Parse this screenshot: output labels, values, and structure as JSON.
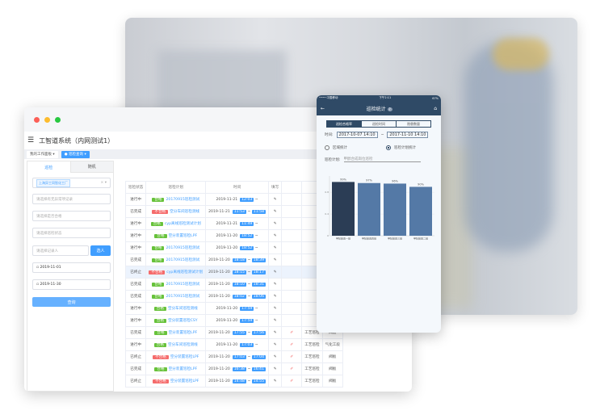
{
  "desktop": {
    "app_title": "工智道系统（内网测试1）",
    "tabs": [
      {
        "label": "我的工作面板"
      },
      {
        "label": "巡检查询"
      }
    ],
    "left_tabs": [
      "巡检",
      "随机"
    ],
    "filters": {
      "plant": "上海异工同智化工厂",
      "abnormal_placeholder": "请选择有无异常项记录",
      "qualified_placeholder": "请选择是否合格",
      "status_placeholder": "请选择巡检状态",
      "recorder_placeholder": "请选择记录人",
      "select_btn": "选人",
      "date_from": "2019-11-01",
      "date_to": "2019-11-30",
      "query_btn": "查询"
    },
    "table": {
      "headers": [
        "巡检状态",
        "巡检计划",
        "时间",
        "填写"
      ],
      "rows": [
        [
          "进行中",
          "合格",
          "20170915巡检测试",
          "2019-11-21",
          "12:03",
          ""
        ],
        [
          "已完成",
          "不合格",
          "空分车间巡检测线",
          "2019-11-21",
          "11:53",
          "11:58"
        ],
        [
          "进行中",
          "合格",
          "cyp离线巡检测试计划",
          "2019-11-21",
          "11:49",
          ""
        ],
        [
          "进行中",
          "合格",
          "空分装置巡检LPF",
          "2019-11-20",
          "18:52",
          ""
        ],
        [
          "进行中",
          "合格",
          "20170915巡检测试",
          "2019-11-20",
          "18:52",
          ""
        ],
        [
          "已完成",
          "合格",
          "20170915巡检测试",
          "2019-11-20",
          "18:18",
          "18:39"
        ],
        [
          "已终止",
          "不合格",
          "cyp离线巡检测试计划",
          "2019-11-20",
          "18:15",
          "18:17"
        ],
        [
          "已完成",
          "合格",
          "20170915巡检测试",
          "2019-11-20",
          "18:10",
          "18:31"
        ],
        [
          "已完成",
          "合格",
          "20170915巡检测试",
          "2019-11-20",
          "18:02",
          "18:06"
        ],
        [
          "进行中",
          "合格",
          "空分车间巡检测线",
          "2019-11-20",
          "17:59",
          ""
        ],
        [
          "进行中",
          "合格",
          "空分装置巡检CSY",
          "2019-11-20",
          "17:59",
          ""
        ],
        [
          "已完成",
          "合格",
          "空分装置巡检LPF",
          "2019-11-20",
          "17:55",
          "17:56"
        ],
        [
          "进行中",
          "合格",
          "空分车间巡检测线",
          "2019-11-20",
          "17:03",
          ""
        ],
        [
          "已终止",
          "不合格",
          "空分装置巡检LPF",
          "2019-11-20",
          "17:03",
          "17:04"
        ],
        [
          "已完成",
          "合格",
          "空分装置巡检LPF",
          "2019-11-20",
          "16:38",
          "16:41"
        ],
        [
          "已终止",
          "不合格",
          "空分装置巡检LPF",
          "2019-11-20",
          "14:48",
          "14:55"
        ]
      ],
      "extra_rows": [
        [
          "工艺巡检",
          "阀板"
        ],
        [
          "工艺巡检",
          "气化工段"
        ],
        [
          "工艺巡检",
          "阀板"
        ],
        [
          "工艺巡检",
          "阀板"
        ],
        [
          "工艺巡检",
          "阀板"
        ]
      ]
    }
  },
  "phone": {
    "status": {
      "carrier": "中国移动",
      "time": "下午2:11",
      "battery": "67%"
    },
    "title": "巡检统计",
    "seg": [
      "巡检合格率",
      "巡检时间",
      "隐患数量"
    ],
    "time_label": "时间:",
    "date_from": "2017-10-07 14:10",
    "date_to": "2017-11-10 14:10",
    "radio_area": "区域统计",
    "radio_plan": "巡检计划统计",
    "plan_label": "巡检计划:",
    "plan_value": "甲醇合成岗位巡检"
  },
  "chart_data": {
    "type": "bar",
    "categories": [
      "甲醇装置一班",
      "甲醇装置四班",
      "甲醇装置三班",
      "甲醇装置二班"
    ],
    "values": [
      99,
      97,
      96,
      90
    ],
    "data_labels": [
      "99%",
      "97%",
      "96%",
      "90%"
    ],
    "yticks": [
      "0",
      "0.4",
      "0.8"
    ],
    "ylim": [
      0,
      1.1
    ],
    "colors": [
      "#2b3d55",
      "#5479a6",
      "#5479a6",
      "#5479a6"
    ]
  },
  "colors": {
    "primary": "#409eff",
    "ok": "#67c23a",
    "ng": "#f56c6c",
    "phone_nav": "#2f4a66"
  }
}
